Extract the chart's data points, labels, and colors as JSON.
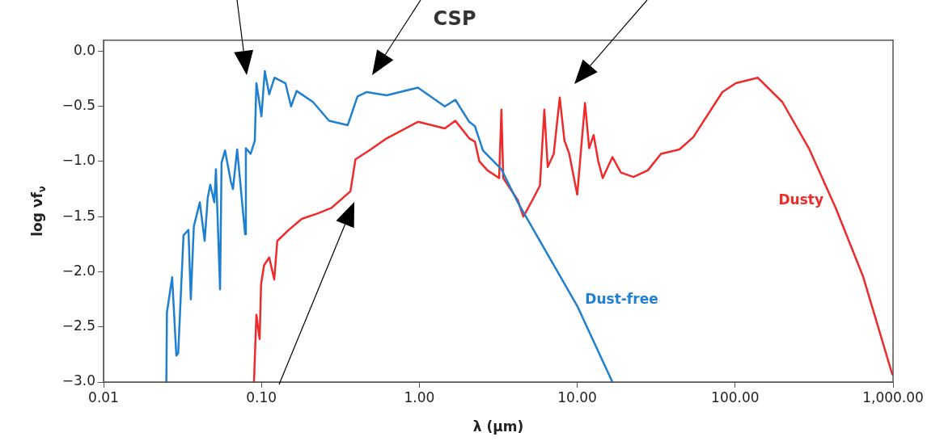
{
  "chart_data": {
    "type": "line",
    "title": "CSP",
    "xlabel": "λ (μm)",
    "ylabel": "log νf$_{ν}$",
    "log": "x",
    "grid": false,
    "legend": false,
    "marker": "none",
    "line_style": "solid",
    "xlim": [
      0.01,
      1000
    ],
    "xticks": [
      {
        "value": 0.01,
        "label": "0.01"
      },
      {
        "value": 0.1,
        "label": "0.10"
      },
      {
        "value": 1,
        "label": "1.00"
      },
      {
        "value": 10,
        "label": "10.00"
      },
      {
        "value": 100,
        "label": "100.00"
      },
      {
        "value": 1000,
        "label": "1,000.00"
      }
    ],
    "ylim": [
      -3,
      0.1
    ],
    "yticks": [
      {
        "value": 0,
        "label": "0.0"
      },
      {
        "value": -0.5,
        "label": "−0.5"
      },
      {
        "value": -1,
        "label": "−1.0"
      },
      {
        "value": -1.5,
        "label": "−1.5"
      },
      {
        "value": -2,
        "label": "−2.0"
      },
      {
        "value": -2.5,
        "label": "−2.5"
      },
      {
        "value": -3,
        "label": "−3.0"
      }
    ],
    "series": [
      {
        "name": "Dust-free",
        "color": "#1f7fd0",
        "x": [
          0.025,
          0.0252,
          0.0272,
          0.0289,
          0.0297,
          0.0321,
          0.0345,
          0.0357,
          0.0373,
          0.0407,
          0.0437,
          0.0457,
          0.0474,
          0.0503,
          0.0515,
          0.0547,
          0.0559,
          0.0588,
          0.064,
          0.066,
          0.0702,
          0.0788,
          0.0797,
          0.0855,
          0.0908,
          0.0929,
          0.1,
          0.105,
          0.112,
          0.121,
          0.142,
          0.154,
          0.167,
          0.212,
          0.268,
          0.352,
          0.38,
          0.406,
          0.465,
          0.621,
          0.98,
          1.45,
          1.69,
          2.07,
          2.25,
          2.53,
          3.31,
          4.2,
          6.19,
          10,
          16.7
        ],
        "values": [
          -3.0,
          -2.37,
          -2.05,
          -2.76,
          -2.74,
          -1.67,
          -1.62,
          -2.25,
          -1.59,
          -1.37,
          -1.72,
          -1.33,
          -1.21,
          -1.37,
          -1.07,
          -2.16,
          -1.01,
          -0.9,
          -1.18,
          -1.25,
          -0.89,
          -1.66,
          -0.88,
          -0.93,
          -0.81,
          -0.29,
          -0.59,
          -0.18,
          -0.39,
          -0.24,
          -0.29,
          -0.5,
          -0.36,
          -0.46,
          -0.63,
          -0.67,
          -0.53,
          -0.41,
          -0.37,
          -0.4,
          -0.33,
          -0.5,
          -0.44,
          -0.64,
          -0.68,
          -0.9,
          -1.07,
          -1.37,
          -1.79,
          -2.31,
          -3.0
        ]
      },
      {
        "name": "Dusty",
        "color": "#ee2a2a",
        "x": [
          0.0897,
          0.0929,
          0.0974,
          0.0995,
          0.104,
          0.112,
          0.1205,
          0.126,
          0.149,
          0.18,
          0.228,
          0.278,
          0.366,
          0.394,
          0.482,
          0.621,
          0.98,
          1.45,
          1.69,
          2.07,
          2.25,
          2.4,
          2.7,
          3.2,
          3.31,
          3.4,
          4.2,
          4.56,
          5.2,
          5.8,
          6.19,
          6.5,
          7.1,
          7.75,
          8.3,
          8.9,
          10,
          11.2,
          11.9,
          12.7,
          13.6,
          14.5,
          16.7,
          18.9,
          22.7,
          28,
          33.9,
          44.4,
          54.3,
          83,
          101,
          139,
          199,
          293,
          433,
          645,
          989
        ],
        "values": [
          -3.0,
          -2.39,
          -2.61,
          -2.11,
          -1.94,
          -1.87,
          -2.07,
          -1.72,
          -1.62,
          -1.52,
          -1.47,
          -1.42,
          -1.27,
          -0.98,
          -0.9,
          -0.79,
          -0.64,
          -0.7,
          -0.63,
          -0.79,
          -0.82,
          -1.0,
          -1.08,
          -1.15,
          -0.53,
          -1.15,
          -1.35,
          -1.5,
          -1.35,
          -1.22,
          -0.53,
          -1.05,
          -0.93,
          -0.42,
          -0.81,
          -0.93,
          -1.3,
          -0.47,
          -0.88,
          -0.76,
          -1.0,
          -1.15,
          -0.96,
          -1.1,
          -1.14,
          -1.08,
          -0.93,
          -0.89,
          -0.78,
          -0.37,
          -0.29,
          -0.24,
          -0.46,
          -0.88,
          -1.42,
          -2.04,
          -2.93
        ]
      }
    ]
  }
}
